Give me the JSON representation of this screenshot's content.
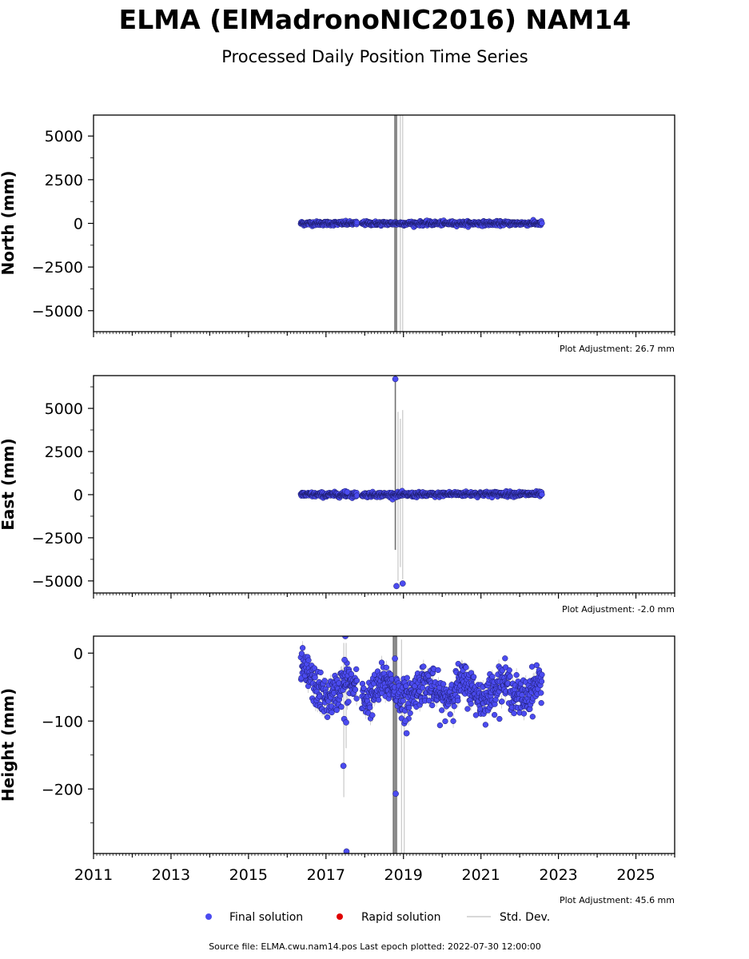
{
  "title": "ELMA (ElMadronoNIC2016) NAM14",
  "subtitle": "Processed Daily Position Time Series",
  "footer": "Source file: ELMA.cwu.nam14.pos  Last epoch plotted: 2022-07-30 12:00:00",
  "legend": {
    "placement": "bottom-center",
    "items": [
      {
        "label": "Final solution",
        "marker": "dot",
        "color": "#4b4bf0"
      },
      {
        "label": "Rapid solution",
        "marker": "dot",
        "color": "#e00000"
      },
      {
        "label": "Std. Dev.",
        "marker": "line",
        "color": "#cccccc"
      }
    ]
  },
  "colors": {
    "final": "#4b4bf0",
    "final_edge": "#1a1a66",
    "stddev": "#c8c8c8",
    "stddev_dark": "#707070"
  },
  "chart_data": [
    {
      "type": "scatter",
      "ylabel": "North (mm)",
      "adjustment": "Plot Adjustment: 26.7 mm",
      "xlim": [
        2011,
        2026
      ],
      "ylim": [
        -6200,
        6200
      ],
      "yticks": [
        5000,
        2500,
        0,
        -2500,
        -5000
      ],
      "ytick_labels": [
        "5000",
        "2500",
        "0",
        "−2500",
        "−5000"
      ],
      "data_range": [
        2016.35,
        2022.58
      ],
      "gaps": [
        [
          2017.8,
          2017.92
        ]
      ],
      "typical_value": 0,
      "spread": 60,
      "outliers": [],
      "stddev_spikes": [
        {
          "x": 2018.78,
          "lo": -6200,
          "hi": 6200,
          "shade": "dark"
        },
        {
          "x": 2018.82,
          "lo": -6200,
          "hi": 6200,
          "shade": "dark"
        },
        {
          "x": 2018.92,
          "lo": -6200,
          "hi": 6200,
          "shade": "light"
        },
        {
          "x": 2018.98,
          "lo": -6200,
          "hi": 6200,
          "shade": "light"
        }
      ]
    },
    {
      "type": "scatter",
      "ylabel": "East (mm)",
      "adjustment": "Plot Adjustment: -2.0 mm",
      "xlim": [
        2011,
        2026
      ],
      "ylim": [
        -5700,
        6900
      ],
      "yticks": [
        5000,
        2500,
        0,
        -2500,
        -5000
      ],
      "ytick_labels": [
        "5000",
        "2500",
        "0",
        "−2500",
        "−5000"
      ],
      "data_range": [
        2016.35,
        2022.58
      ],
      "gaps": [
        [
          2017.8,
          2017.92
        ]
      ],
      "typical_value": 0,
      "spread": 70,
      "outliers": [
        {
          "x": 2018.79,
          "y": 6700
        },
        {
          "x": 2018.82,
          "y": -5300
        },
        {
          "x": 2018.98,
          "y": -5150
        },
        {
          "x": 2017.5,
          "y": 200
        },
        {
          "x": 2017.55,
          "y": 150
        }
      ],
      "stddev_spikes": [
        {
          "x": 2018.79,
          "lo": -3200,
          "hi": 6700,
          "shade": "dark"
        },
        {
          "x": 2018.86,
          "lo": -5000,
          "hi": 4800,
          "shade": "light"
        },
        {
          "x": 2018.92,
          "lo": -4200,
          "hi": 4400,
          "shade": "light"
        },
        {
          "x": 2018.98,
          "lo": -4900,
          "hi": 4900,
          "shade": "light"
        }
      ]
    },
    {
      "type": "scatter",
      "ylabel": "Height (mm)",
      "adjustment": "Plot Adjustment: 45.6 mm",
      "xlim": [
        2011,
        2026
      ],
      "ylim": [
        -295,
        25
      ],
      "yticks": [
        0,
        -100,
        -200
      ],
      "ytick_labels": [
        "0",
        "−100",
        "−200"
      ],
      "xticks": [
        2011,
        2013,
        2015,
        2017,
        2019,
        2021,
        2023,
        2025
      ],
      "xtick_labels": [
        "2011",
        "2013",
        "2015",
        "2017",
        "2019",
        "2021",
        "2023",
        "2025"
      ],
      "data_range": [
        2016.35,
        2022.58
      ],
      "gaps": [
        [
          2017.8,
          2017.92
        ]
      ],
      "typical_value": -55,
      "spread": 14,
      "outliers": [
        {
          "x": 2017.5,
          "y": 25
        },
        {
          "x": 2017.48,
          "y": -10
        },
        {
          "x": 2017.47,
          "y": -97
        },
        {
          "x": 2017.52,
          "y": -102
        },
        {
          "x": 2017.45,
          "y": -166
        },
        {
          "x": 2017.53,
          "y": -292
        },
        {
          "x": 2018.8,
          "y": -207
        },
        {
          "x": 2018.78,
          "y": -8
        },
        {
          "x": 2019.08,
          "y": -118
        },
        {
          "x": 2019.05,
          "y": -100
        }
      ],
      "stddev_spikes": [
        {
          "x": 2017.46,
          "lo": -212,
          "hi": 15,
          "shade": "light"
        },
        {
          "x": 2017.52,
          "lo": -140,
          "hi": 15,
          "shade": "light"
        },
        {
          "x": 2018.74,
          "lo": -295,
          "hi": 25,
          "shade": "dark"
        },
        {
          "x": 2018.78,
          "lo": -295,
          "hi": 25,
          "shade": "dark"
        },
        {
          "x": 2018.82,
          "lo": -295,
          "hi": 25,
          "shade": "dark"
        },
        {
          "x": 2018.95,
          "lo": -295,
          "hi": 20,
          "shade": "light"
        },
        {
          "x": 2019.02,
          "lo": -295,
          "hi": -40,
          "shade": "light"
        }
      ]
    }
  ]
}
